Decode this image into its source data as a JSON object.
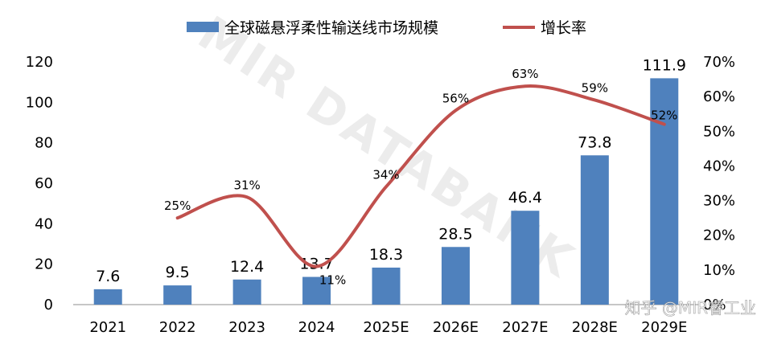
{
  "chart_data": {
    "type": "bar",
    "categories": [
      "2021",
      "2022",
      "2023",
      "2024",
      "2025E",
      "2026E",
      "2027E",
      "2028E",
      "2029E"
    ],
    "series": [
      {
        "name": "全球磁悬浮柔性输送线市场规模",
        "kind": "bar",
        "axis": "left",
        "values": [
          7.6,
          9.5,
          12.4,
          13.7,
          18.3,
          28.5,
          46.4,
          73.8,
          111.9
        ],
        "labels": [
          "7.6",
          "9.5",
          "12.4",
          "13.7",
          "18.3",
          "28.5",
          "46.4",
          "73.8",
          "111.9"
        ]
      },
      {
        "name": "增长率",
        "kind": "line",
        "axis": "right",
        "values": [
          null,
          25,
          31,
          11,
          34,
          56,
          63,
          59,
          52
        ],
        "labels": [
          "",
          "25%",
          "31%",
          "11%",
          "34%",
          "56%",
          "63%",
          "59%",
          "52%"
        ]
      }
    ],
    "y_left": {
      "lim": [
        0,
        120
      ],
      "ticks": [
        "0",
        "20",
        "40",
        "60",
        "80",
        "100",
        "120"
      ]
    },
    "y_right": {
      "lim": [
        0,
        70
      ],
      "ticks": [
        "0%",
        "10%",
        "20%",
        "30%",
        "40%",
        "50%",
        "60%",
        "70%"
      ]
    },
    "legend_position": "top-center",
    "colors": {
      "bar": "#4f81bd",
      "line": "#c0504d"
    }
  },
  "watermark": "MIR DATABANK",
  "credit": "知乎 @MIR睿工业"
}
